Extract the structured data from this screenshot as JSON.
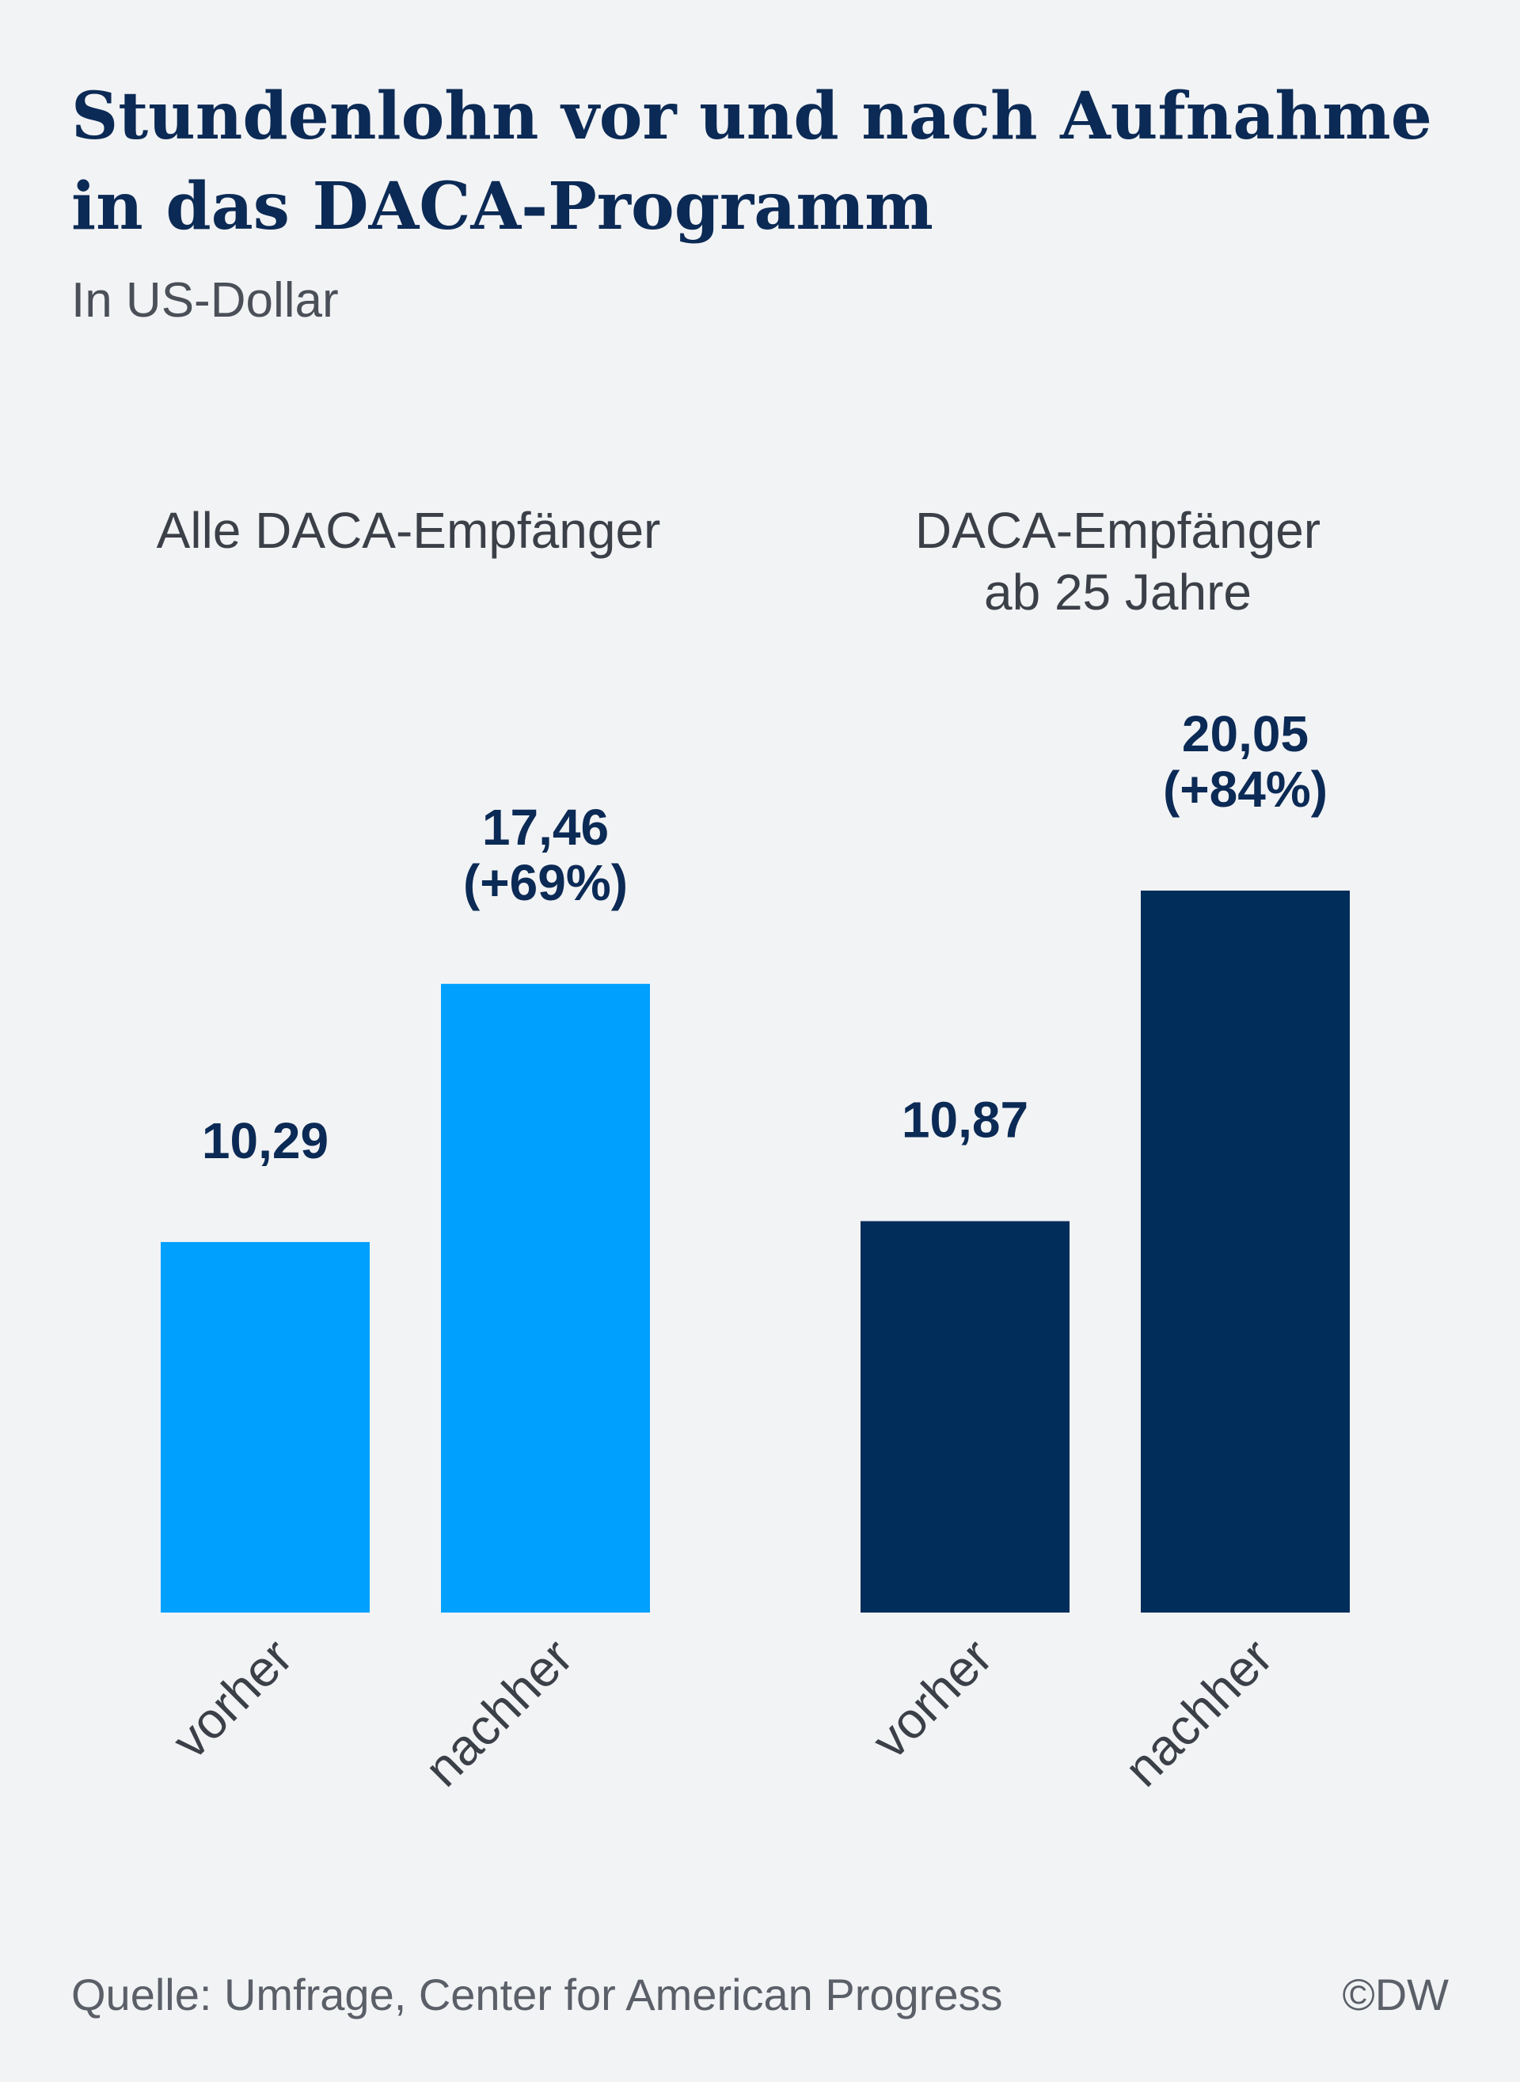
{
  "header": {
    "title_line1": "Stundenlohn vor und nach Aufnahme",
    "title_line2": "in das DACA-Programm",
    "subtitle": "In US-Dollar"
  },
  "footer": {
    "source": "Quelle: Umfrage, Center for American Progress",
    "credit": "©DW"
  },
  "chart_data": {
    "type": "bar",
    "title": "Stundenlohn vor und nach Aufnahme in das DACA-Programm",
    "subtitle": "In US-Dollar",
    "xlabel": "",
    "ylabel": "",
    "ylim": [
      0,
      20.05
    ],
    "grid": false,
    "legend": "none",
    "groups": [
      {
        "label_lines": [
          "Alle DACA-Empfänger"
        ],
        "color": "#00a0ff",
        "bars": [
          {
            "category": "vorher",
            "value": 10.29,
            "label_lines": [
              "10,29"
            ]
          },
          {
            "category": "nachher",
            "value": 17.46,
            "label_lines": [
              "17,46",
              "(+69%)"
            ]
          }
        ]
      },
      {
        "label_lines": [
          "DACA-Empfänger",
          "ab 25 Jahre"
        ],
        "color": "#002d5a",
        "bars": [
          {
            "category": "vorher",
            "value": 10.87,
            "label_lines": [
              "10,87"
            ]
          },
          {
            "category": "nachher",
            "value": 20.05,
            "label_lines": [
              "20,05",
              "(+84%)"
            ]
          }
        ]
      }
    ]
  }
}
